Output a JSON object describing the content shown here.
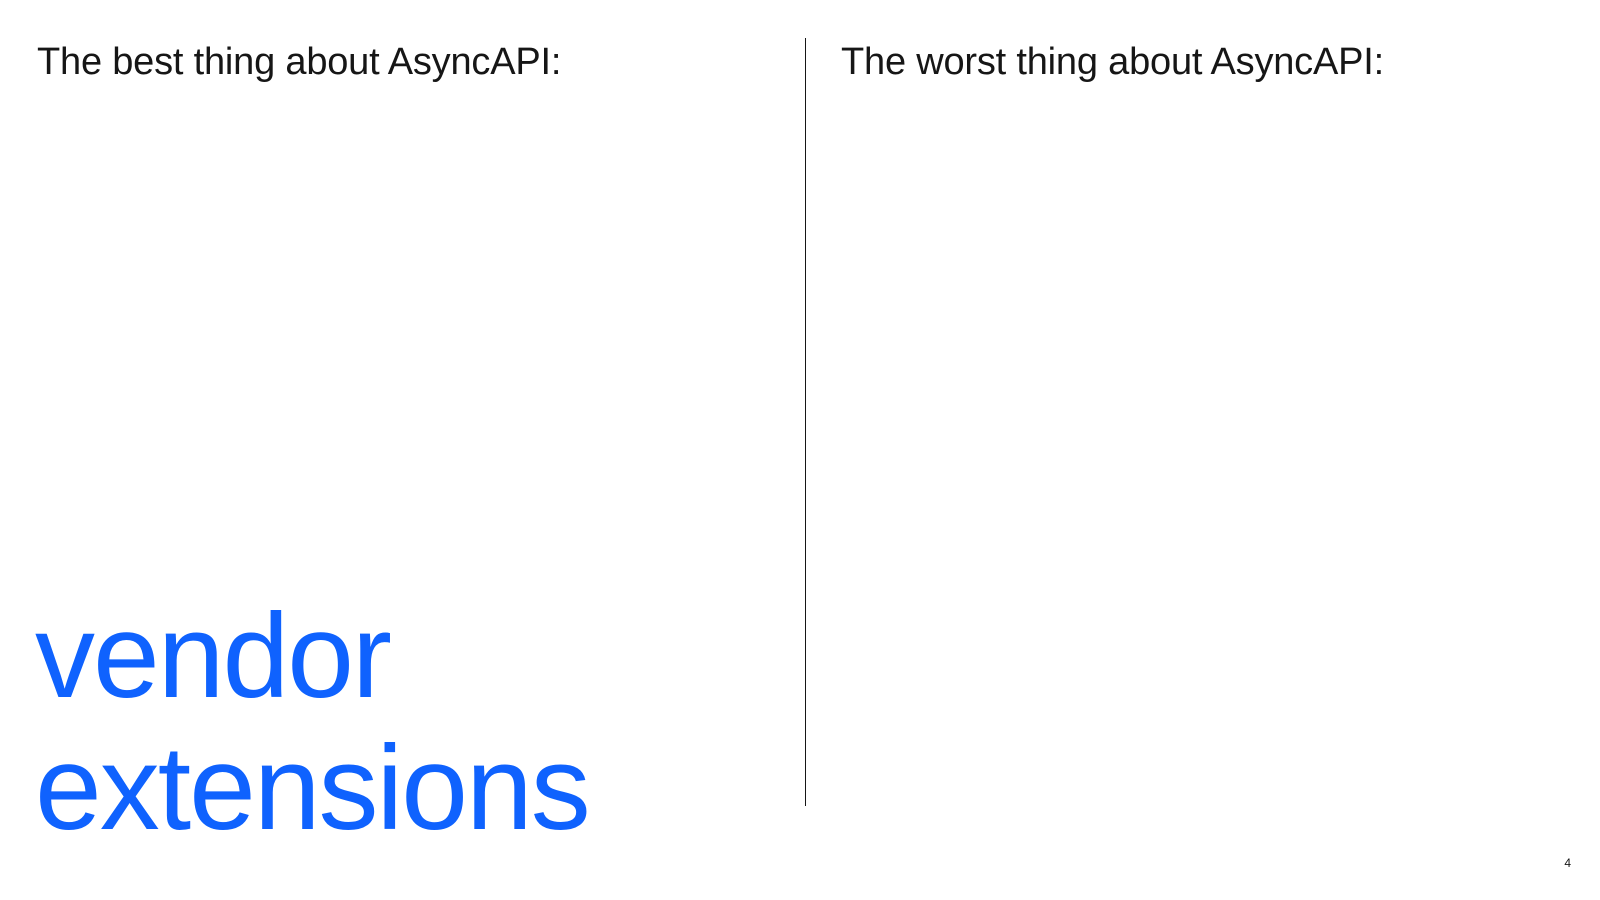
{
  "left": {
    "heading": "The best thing about AsyncAPI:",
    "answer_line1": "vendor",
    "answer_line2": "extensions"
  },
  "right": {
    "heading": "The worst thing about AsyncAPI:"
  },
  "page_number": "4",
  "colors": {
    "text": "#161616",
    "accent": "#0f62fe",
    "background": "#ffffff"
  }
}
